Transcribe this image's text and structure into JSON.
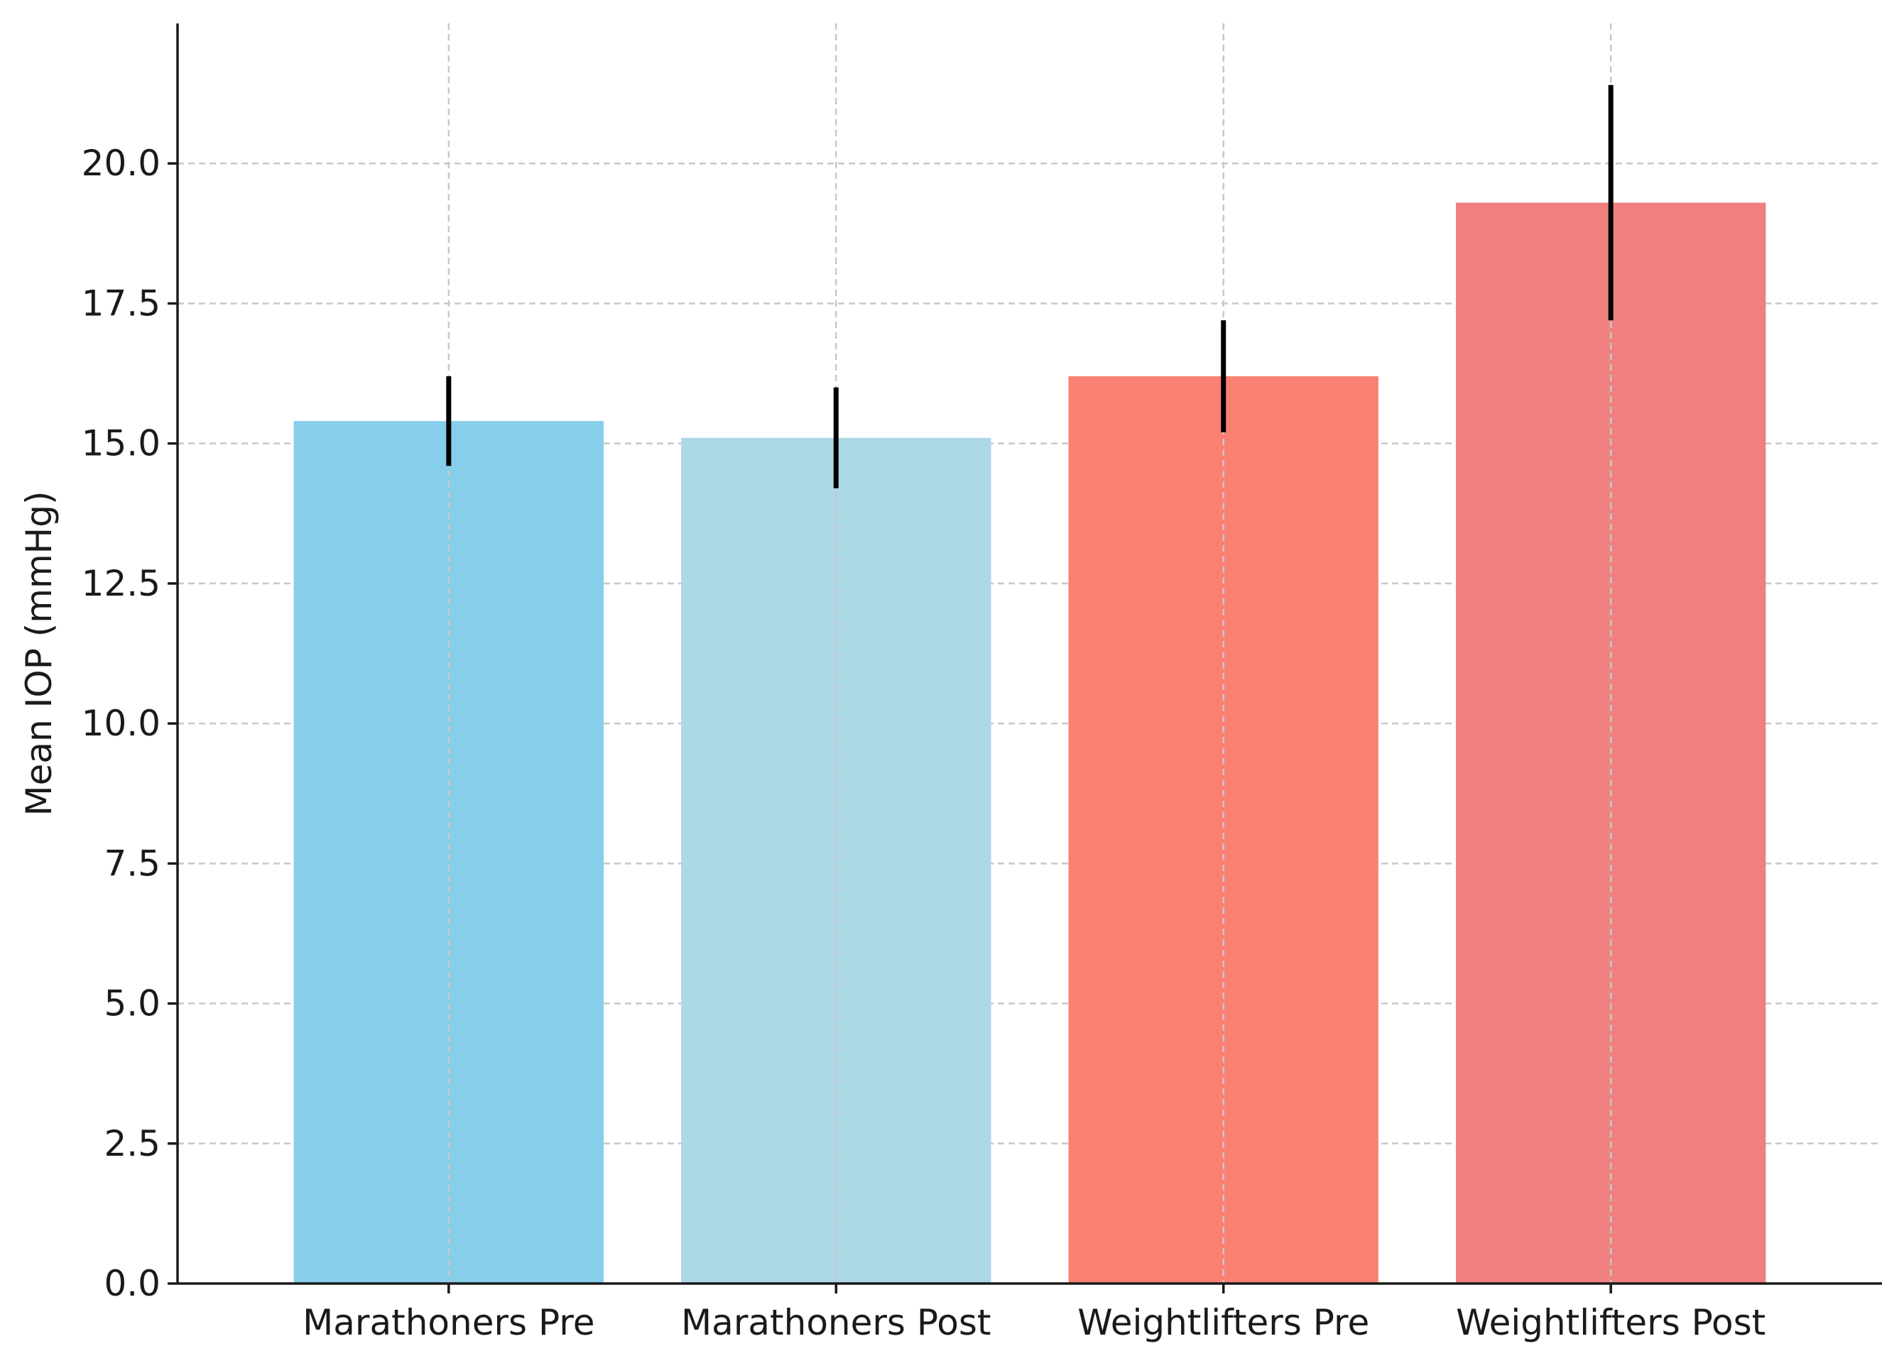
{
  "chart_data": {
    "type": "bar",
    "title": "",
    "xlabel": "",
    "ylabel": "Mean IOP (mmHg)",
    "ylim": [
      0,
      22.5
    ],
    "yticks": [
      0.0,
      2.5,
      5.0,
      7.5,
      10.0,
      12.5,
      15.0,
      17.5,
      20.0
    ],
    "ytick_labels": [
      "0.0",
      "2.5",
      "5.0",
      "7.5",
      "10.0",
      "12.5",
      "15.0",
      "17.5",
      "20.0"
    ],
    "grid": true,
    "categories": [
      "Marathoners Pre",
      "Marathoners Post",
      "Weightlifters Pre",
      "Weightlifters Post"
    ],
    "values": [
      15.4,
      15.1,
      16.2,
      19.3
    ],
    "errors": [
      0.8,
      0.9,
      1.0,
      2.1
    ],
    "colors": [
      "#87CEEB",
      "#ADD8E6",
      "#FA8072",
      "#F08080"
    ]
  }
}
